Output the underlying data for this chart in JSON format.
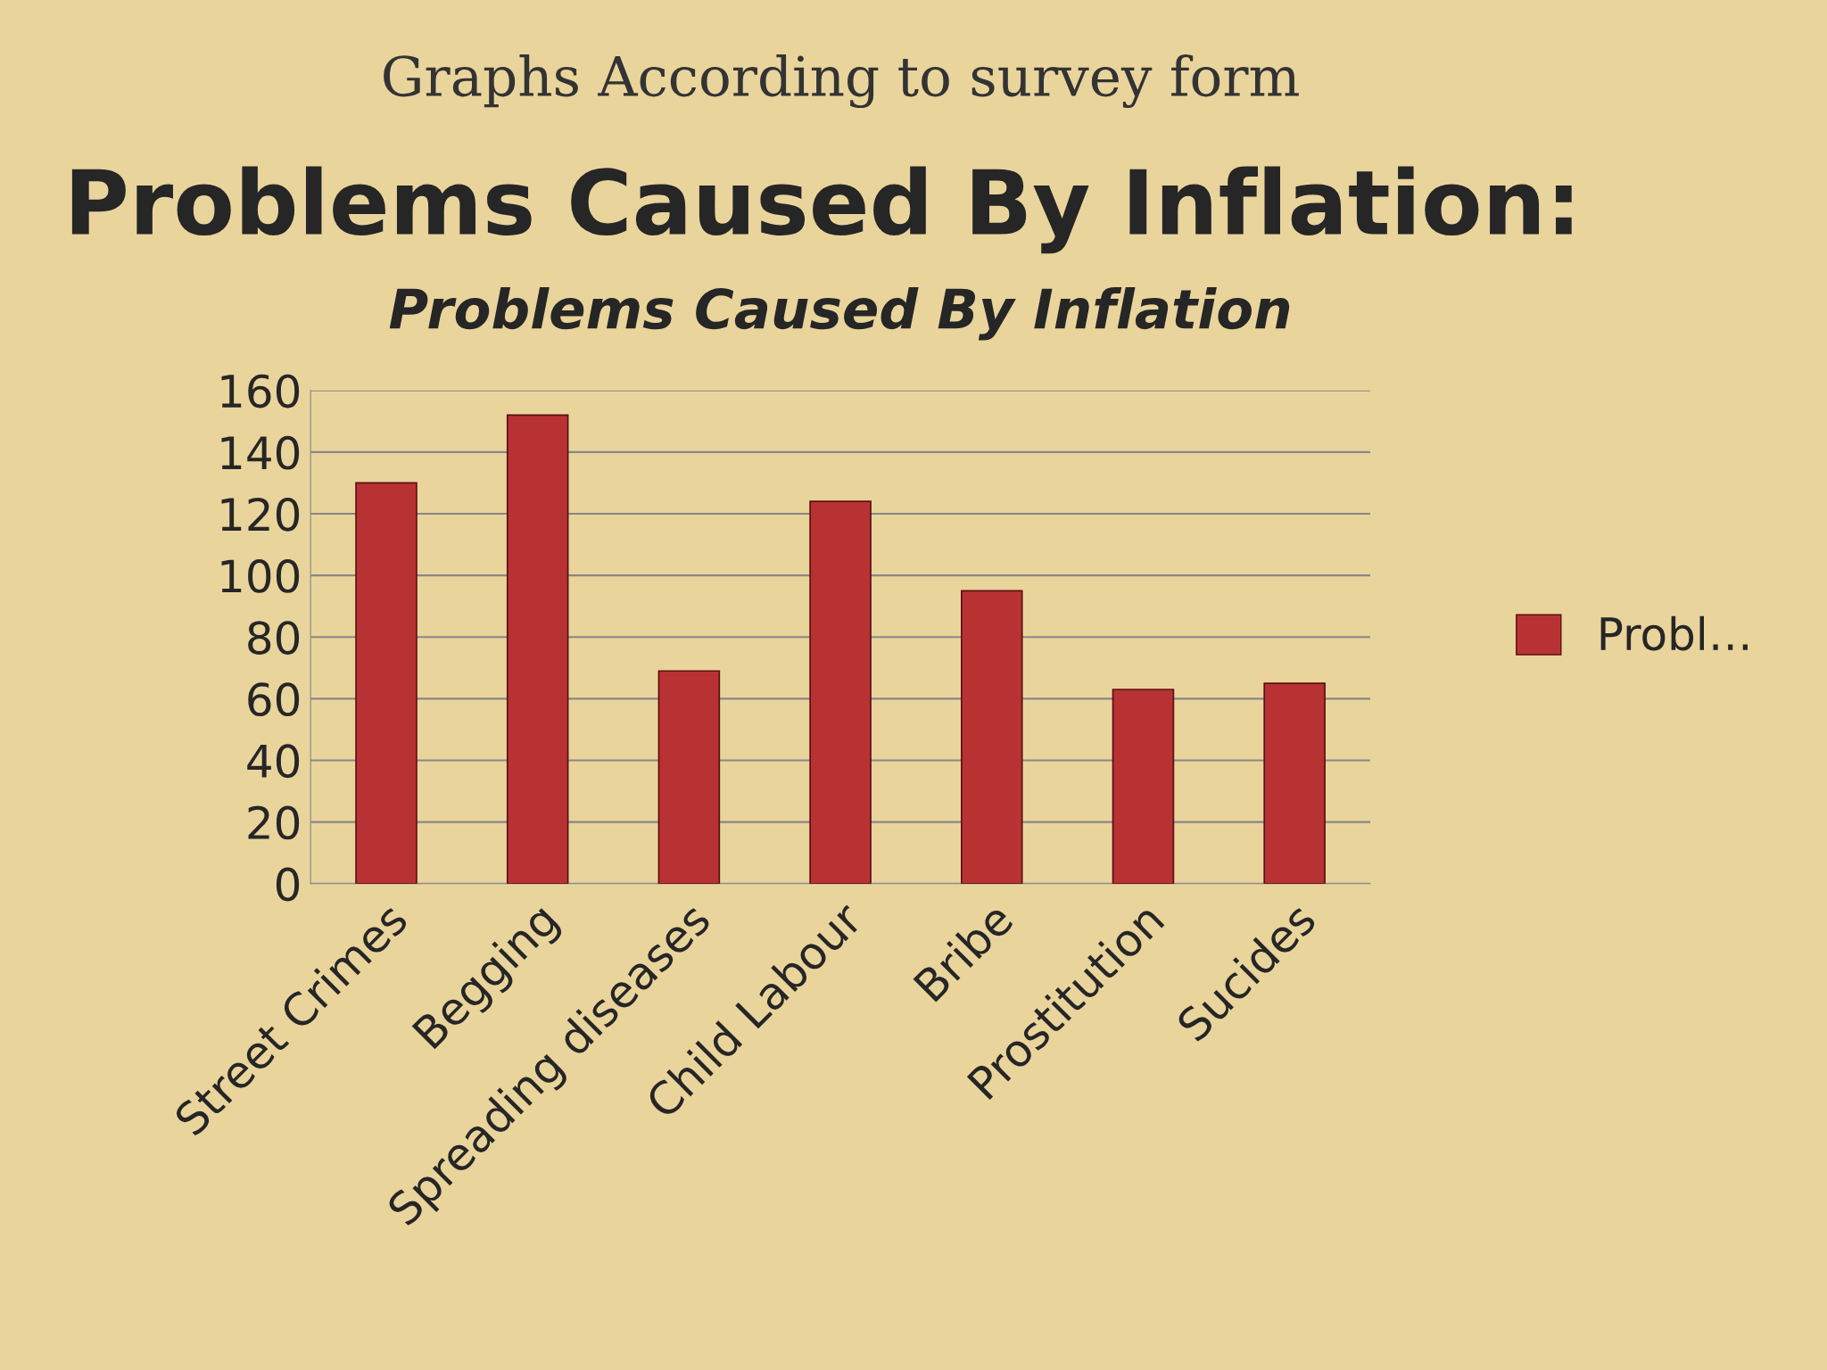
{
  "chart_data": {
    "type": "bar",
    "title": "Problems Caused By Inflation",
    "annotations": [
      "Graphs According to survey form",
      "Problems Caused By Inflation:"
    ],
    "categories": [
      "Street Crimes",
      "Begging",
      "Spreading diseases",
      "Child Labour",
      "Bribe",
      "Prostitution",
      "Sucides"
    ],
    "series": [
      {
        "name": "Probl…",
        "color": "#b83234",
        "values": [
          130,
          152,
          69,
          124,
          95,
          63,
          65
        ]
      }
    ],
    "ylim": [
      0,
      160
    ],
    "yticks": [
      0,
      20,
      40,
      60,
      80,
      100,
      120,
      140,
      160
    ],
    "grid": "y",
    "legend": "right"
  }
}
